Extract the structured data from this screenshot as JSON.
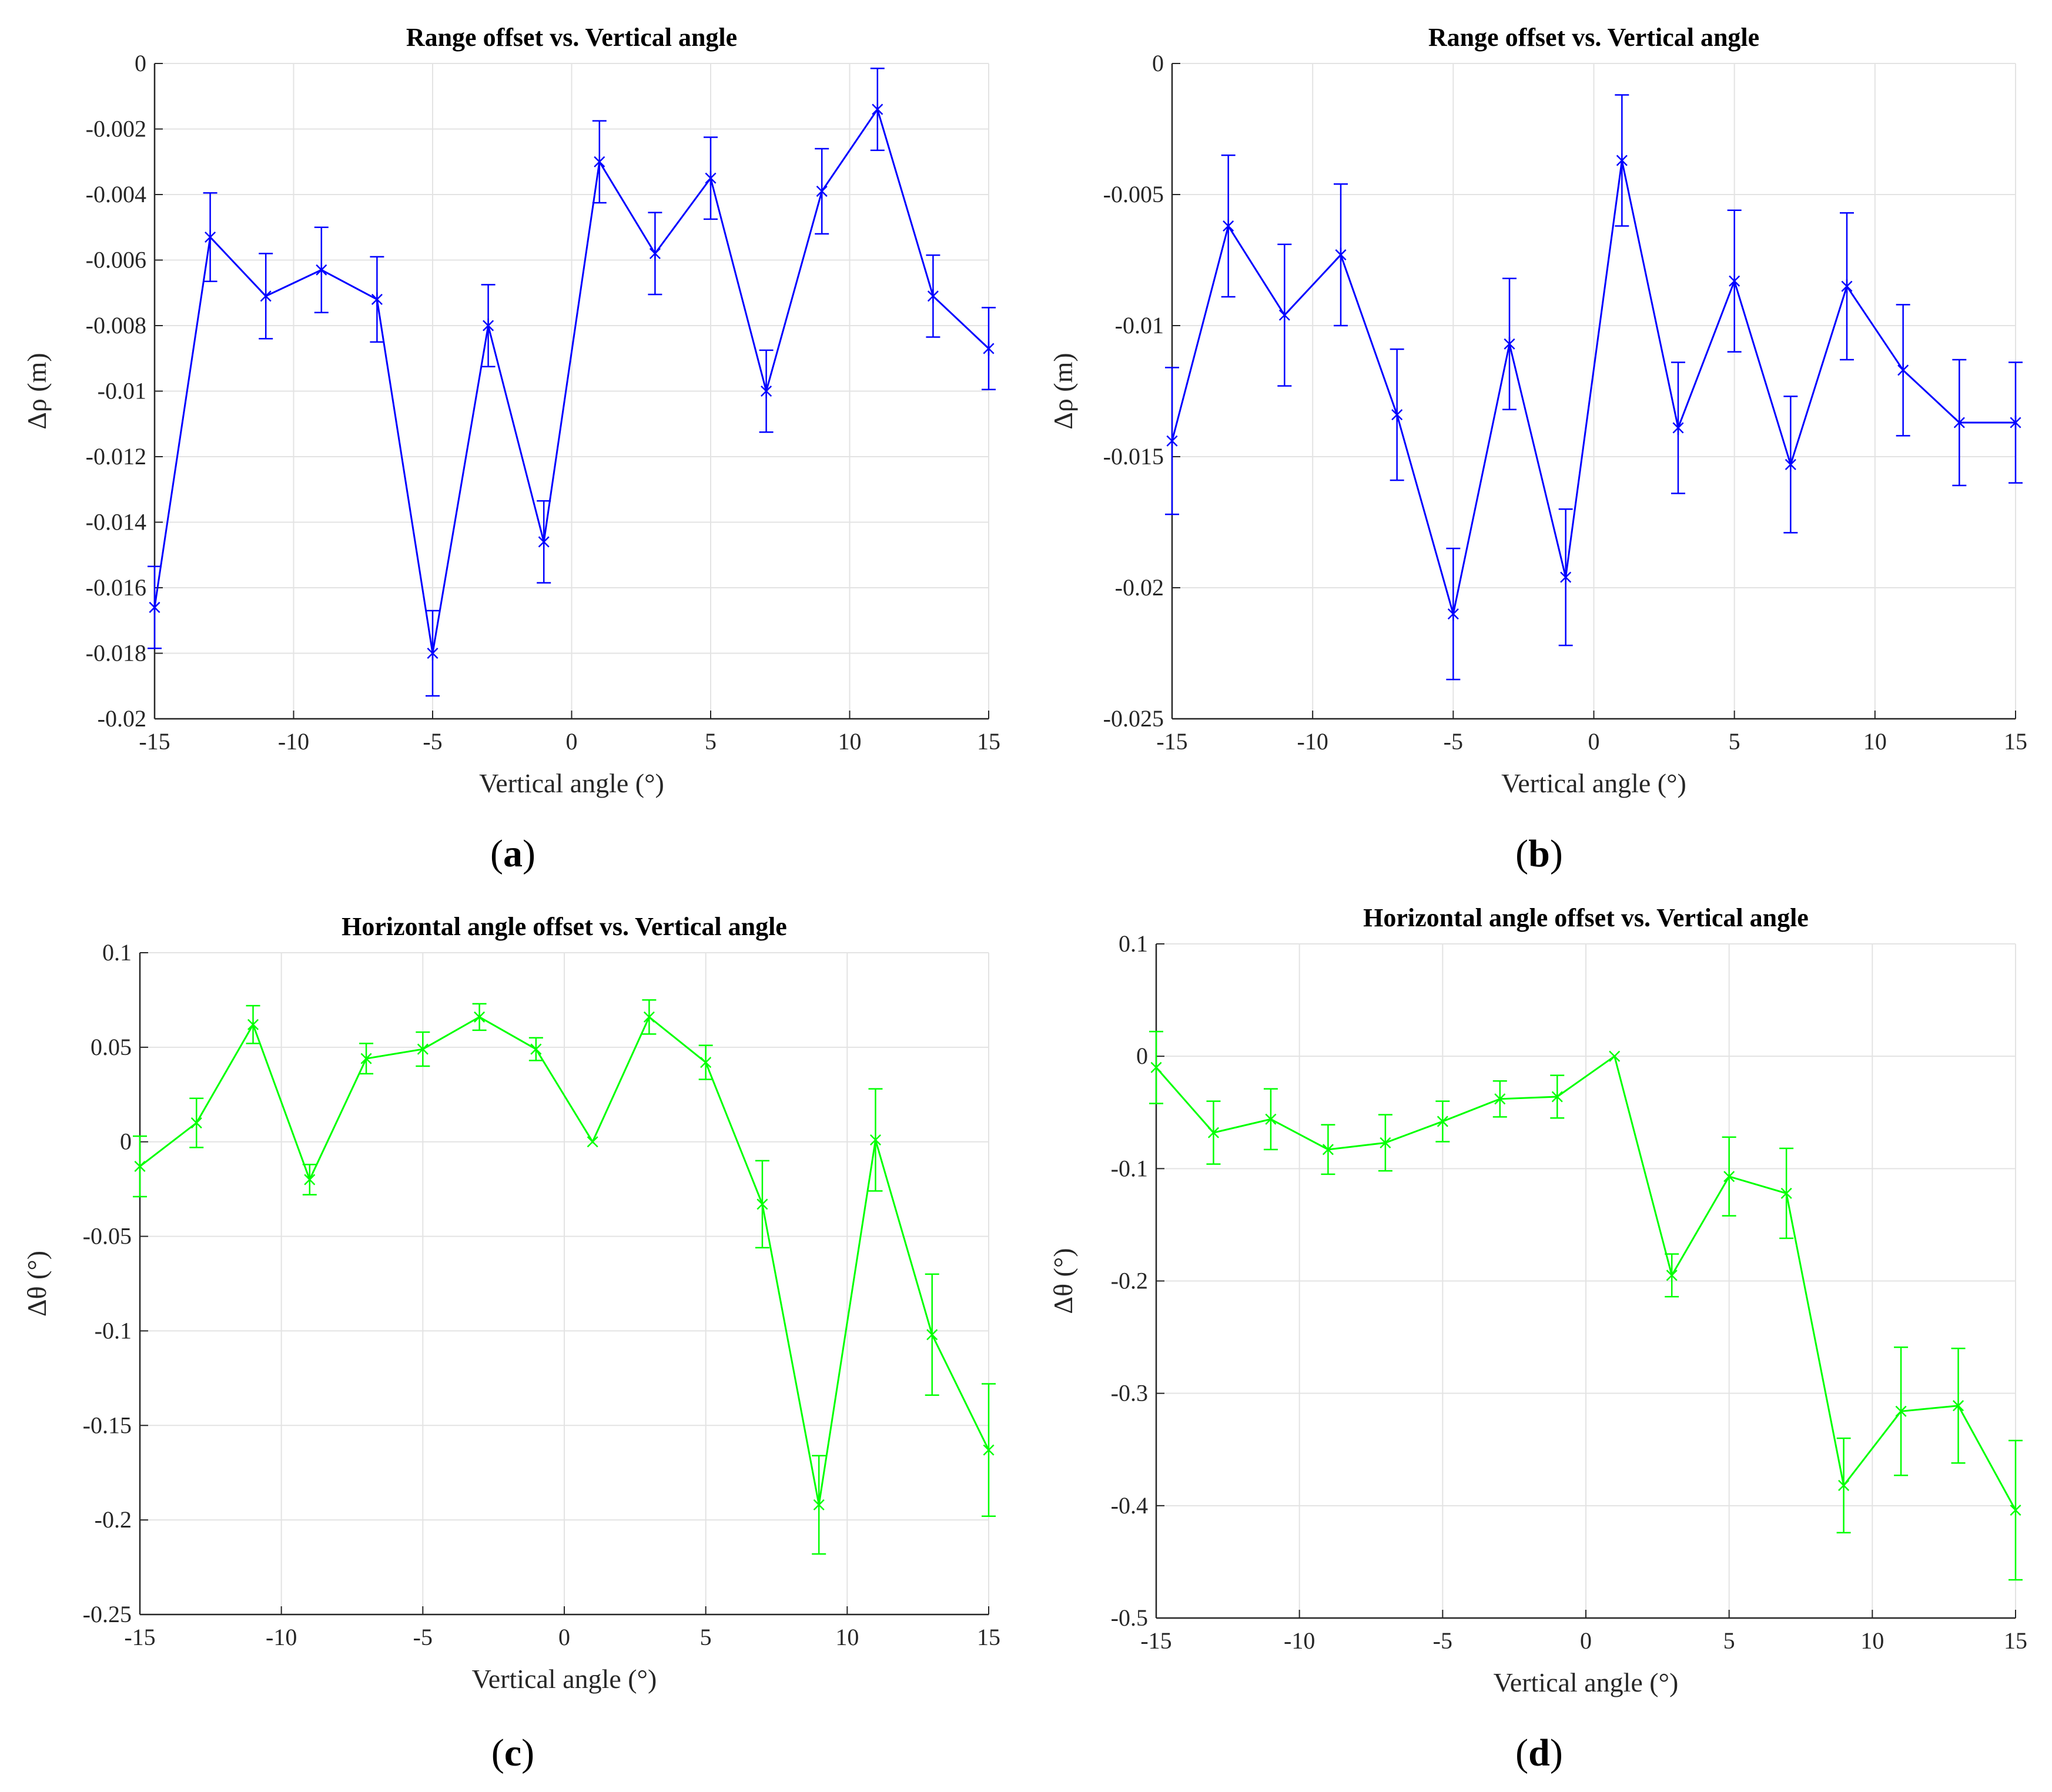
{
  "chart_data": [
    {
      "id": "a",
      "type": "line",
      "caption": "a",
      "title": "Range offset vs. Vertical angle",
      "xlabel": "Vertical angle (°)",
      "ylabel": "Δρ (m)",
      "xlim": [
        -15,
        15
      ],
      "ylim": [
        -0.02,
        0
      ],
      "xticks": [
        -15,
        -10,
        -5,
        0,
        5,
        10,
        15
      ],
      "xtick_labels": [
        "-15",
        "-10",
        "-5",
        "0",
        "5",
        "10",
        "15"
      ],
      "yticks": [
        0,
        -0.002,
        -0.004,
        -0.006,
        -0.008,
        -0.01,
        -0.012,
        -0.014,
        -0.016,
        -0.018,
        -0.02
      ],
      "ytick_labels": [
        "0",
        "-0.002",
        "-0.004",
        "-0.006",
        "-0.008",
        "-0.01",
        "-0.012",
        "-0.014",
        "-0.016",
        "-0.018",
        "-0.02"
      ],
      "grid": true,
      "color": "#0000ff",
      "marker": "asterisk",
      "x": [
        -15,
        -13,
        -11,
        -9,
        -7,
        -5,
        -3,
        -1,
        1,
        3,
        5,
        7,
        9,
        11,
        13,
        15
      ],
      "y": [
        -0.0166,
        -0.0053,
        -0.0071,
        -0.0063,
        -0.0072,
        -0.018,
        -0.008,
        -0.0146,
        -0.003,
        -0.0058,
        -0.0035,
        -0.01,
        -0.0039,
        -0.0014,
        -0.0071,
        -0.0087
      ],
      "err": [
        0.00125,
        0.00135,
        0.0013,
        0.0013,
        0.0013,
        0.0013,
        0.00125,
        0.00125,
        0.00125,
        0.00125,
        0.00125,
        0.00125,
        0.0013,
        0.00125,
        0.00125,
        0.00125
      ]
    },
    {
      "id": "b",
      "type": "line",
      "caption": "b",
      "title": "Range offset vs. Vertical angle",
      "xlabel": "Vertical angle (°)",
      "ylabel": "Δρ (m)",
      "xlim": [
        -15,
        15
      ],
      "ylim": [
        -0.025,
        0
      ],
      "xticks": [
        -15,
        -10,
        -5,
        0,
        5,
        10,
        15
      ],
      "xtick_labels": [
        "-15",
        "-10",
        "-5",
        "0",
        "5",
        "10",
        "15"
      ],
      "yticks": [
        0,
        -0.005,
        -0.01,
        -0.015,
        -0.02,
        -0.025
      ],
      "ytick_labels": [
        "0",
        "-0.005",
        "-0.01",
        "-0.015",
        "-0.02",
        "-0.025"
      ],
      "grid": true,
      "color": "#0000ff",
      "marker": "asterisk",
      "x": [
        -15,
        -13,
        -11,
        -9,
        -7,
        -5,
        -3,
        -1,
        1,
        3,
        5,
        7,
        9,
        11,
        13,
        15
      ],
      "y": [
        -0.0144,
        -0.0062,
        -0.0096,
        -0.0073,
        -0.0134,
        -0.021,
        -0.0107,
        -0.0196,
        -0.0037,
        -0.0139,
        -0.0083,
        -0.0153,
        -0.0085,
        -0.0117,
        -0.0137,
        -0.0137
      ],
      "err": [
        0.0028,
        0.0027,
        0.0027,
        0.0027,
        0.0025,
        0.0025,
        0.0025,
        0.0026,
        0.0025,
        0.0025,
        0.0027,
        0.0026,
        0.0028,
        0.0025,
        0.0024,
        0.0023
      ]
    },
    {
      "id": "c",
      "type": "line",
      "caption": "c",
      "title": "Horizontal angle offset vs. Vertical angle",
      "xlabel": "Vertical angle (°)",
      "ylabel": "Δθ (°)",
      "xlim": [
        -15,
        15
      ],
      "ylim": [
        -0.25,
        0.1
      ],
      "xticks": [
        -15,
        -10,
        -5,
        0,
        5,
        10,
        15
      ],
      "xtick_labels": [
        "-15",
        "-10",
        "-5",
        "0",
        "5",
        "10",
        "15"
      ],
      "yticks": [
        0.1,
        0.05,
        0,
        -0.05,
        -0.1,
        -0.15,
        -0.2,
        -0.25
      ],
      "ytick_labels": [
        "0.1",
        "0.05",
        "0",
        "-0.05",
        "-0.1",
        "-0.15",
        "-0.2",
        "-0.25"
      ],
      "grid": true,
      "color": "#00ff00",
      "marker": "x",
      "x": [
        -15,
        -13,
        -11,
        -9,
        -7,
        -5,
        -3,
        -1,
        1,
        3,
        5,
        7,
        9,
        11,
        13,
        15
      ],
      "y": [
        -0.013,
        0.01,
        0.062,
        -0.02,
        0.044,
        0.049,
        0.066,
        0.049,
        0.0,
        0.066,
        0.042,
        -0.033,
        -0.192,
        0.001,
        -0.102,
        -0.163
      ],
      "err": [
        0.016,
        0.013,
        0.01,
        0.008,
        0.008,
        0.009,
        0.007,
        0.006,
        0.0,
        0.009,
        0.009,
        0.023,
        0.026,
        0.027,
        0.032,
        0.035
      ]
    },
    {
      "id": "d",
      "type": "line",
      "caption": "d",
      "title": "Horizontal angle offset vs. Vertical angle",
      "xlabel": "Vertical angle (°)",
      "ylabel": "Δθ (°)",
      "xlim": [
        -15,
        15
      ],
      "ylim": [
        -0.5,
        0.1
      ],
      "xticks": [
        -15,
        -10,
        -5,
        0,
        5,
        10,
        15
      ],
      "xtick_labels": [
        "-15",
        "-10",
        "-5",
        "0",
        "5",
        "10",
        "15"
      ],
      "yticks": [
        0.1,
        0,
        -0.1,
        -0.2,
        -0.3,
        -0.4,
        -0.5
      ],
      "ytick_labels": [
        "0.1",
        "0",
        "-0.1",
        "-0.2",
        "-0.3",
        "-0.4",
        "-0.5"
      ],
      "grid": true,
      "color": "#00ff00",
      "marker": "x",
      "x": [
        -15,
        -13,
        -11,
        -9,
        -7,
        -5,
        -3,
        -1,
        1,
        3,
        5,
        7,
        9,
        11,
        13,
        15
      ],
      "y": [
        -0.01,
        -0.068,
        -0.056,
        -0.083,
        -0.077,
        -0.058,
        -0.038,
        -0.036,
        0.0,
        -0.195,
        -0.107,
        -0.122,
        -0.382,
        -0.316,
        -0.311,
        -0.404
      ],
      "err": [
        0.032,
        0.028,
        0.027,
        0.022,
        0.025,
        0.018,
        0.016,
        0.019,
        0.0,
        0.019,
        0.035,
        0.04,
        0.042,
        0.057,
        0.051,
        0.062
      ]
    }
  ]
}
